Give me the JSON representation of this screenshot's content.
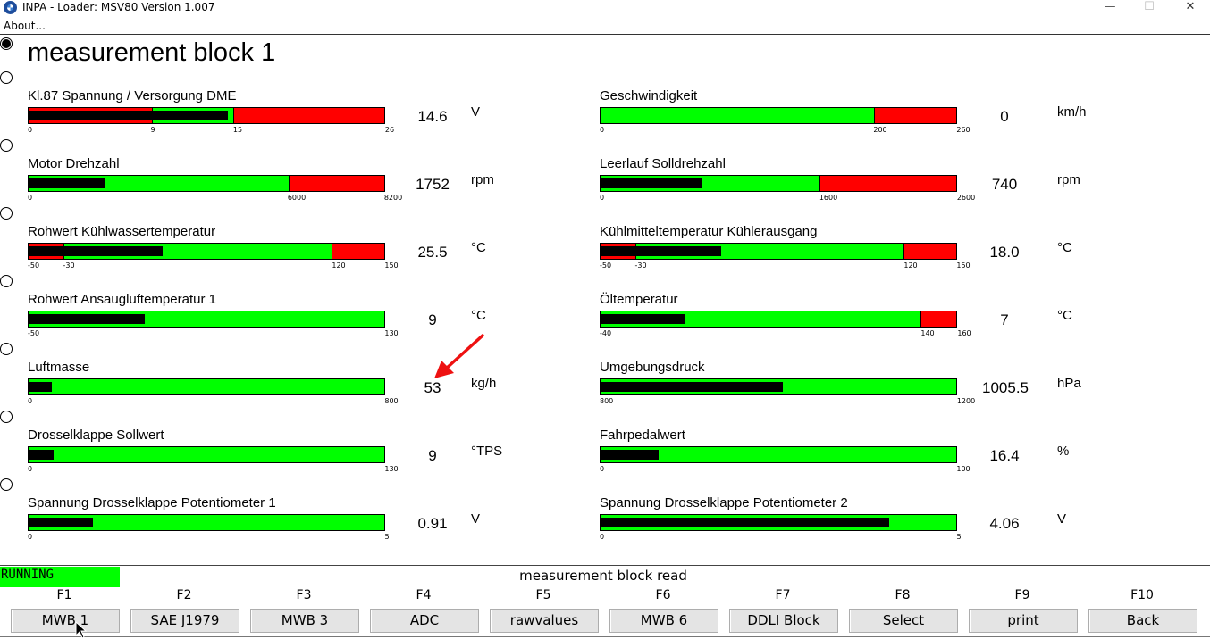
{
  "window": {
    "title": "INPA - Loader:  MSV80 Version 1.007",
    "app_icon": "bmw-logo-icon",
    "controls": {
      "minimize": "—",
      "maximize": "☐",
      "close": "✕"
    }
  },
  "menu": {
    "about": "About..."
  },
  "page_title": "measurement block 1",
  "radio_count": 8,
  "left_column": [
    {
      "label": "Kl.87 Spannung / Versorgung DME",
      "value": "14.6",
      "unit": "V",
      "ticks": [
        "0",
        "9",
        "15",
        "26"
      ],
      "fill_fraction": 0.5615,
      "zones": [
        "red 0-9",
        "green 9-15",
        "red 15-26"
      ]
    },
    {
      "label": "Motor Drehzahl",
      "value": "1752",
      "unit": "rpm",
      "ticks": [
        "0",
        "6000",
        "8200"
      ],
      "fill_fraction": 0.2137,
      "zones": [
        "green 0-6000",
        "red 6000-8200"
      ]
    },
    {
      "label": "Rohwert Kühlwassertemperatur",
      "value": "25.5",
      "unit": "°C",
      "ticks": [
        "-50",
        "-30",
        "120",
        "150"
      ],
      "fill_fraction": 0.3775,
      "zones": [
        "red -50--30",
        "green -30-120",
        "red 120-150"
      ]
    },
    {
      "label": "Rohwert Ansaugluftemperatur 1",
      "value": "9",
      "unit": "°C",
      "ticks": [
        "-50",
        "130"
      ],
      "fill_fraction": 0.3278,
      "zones": [
        "green -50-130"
      ]
    },
    {
      "label": "Luftmasse",
      "value": "53",
      "unit": "kg/h",
      "ticks": [
        "0",
        "800"
      ],
      "fill_fraction": 0.0663,
      "zones": [
        "green 0-800"
      ]
    },
    {
      "label": "Drosselklappe Sollwert",
      "value": "9",
      "unit": "°TPS",
      "ticks": [
        "0",
        "130"
      ],
      "fill_fraction": 0.0692,
      "zones": [
        "green 0-130"
      ]
    },
    {
      "label": "Spannung Drosselklappe Potentiometer 1",
      "value": "0.91",
      "unit": "V",
      "ticks": [
        "0",
        "5"
      ],
      "fill_fraction": 0.182,
      "zones": [
        "green 0-5"
      ]
    }
  ],
  "right_column": [
    {
      "label": "Geschwindigkeit",
      "value": "0",
      "unit": "km/h",
      "ticks": [
        "0",
        "200",
        "260"
      ],
      "fill_fraction": 0,
      "zones": [
        "green 0-200",
        "red 200-260"
      ]
    },
    {
      "label": "Leerlauf Solldrehzahl",
      "value": "740",
      "unit": "rpm",
      "ticks": [
        "0",
        "1600",
        "2600"
      ],
      "fill_fraction": 0.2846,
      "zones": [
        "green 0-1600",
        "red 1600-2600"
      ]
    },
    {
      "label": "Kühlmitteltemperatur Kühlerausgang",
      "value": "18.0",
      "unit": "°C",
      "ticks": [
        "-50",
        "-30",
        "120",
        "150"
      ],
      "fill_fraction": 0.34,
      "zones": [
        "red -50--30",
        "green -30-120",
        "red 120-150"
      ]
    },
    {
      "label": "Öltemperatur",
      "value": "7",
      "unit": "°C",
      "ticks": [
        "-40",
        "140",
        "160"
      ],
      "fill_fraction": 0.235,
      "zones": [
        "green -40-140",
        "red 140-160"
      ]
    },
    {
      "label": "Umgebungsdruck",
      "value": "1005.5",
      "unit": "hPa",
      "ticks": [
        "800",
        "1200"
      ],
      "fill_fraction": 0.5138,
      "zones": [
        "green 800-1200"
      ]
    },
    {
      "label": "Fahrpedalwert",
      "value": "16.4",
      "unit": "%",
      "ticks": [
        "0",
        "100"
      ],
      "fill_fraction": 0.164,
      "zones": [
        "green 0-100"
      ]
    },
    {
      "label": "Spannung Drosselklappe Potentiometer 2",
      "value": "4.06",
      "unit": "V",
      "ticks": [
        "0",
        "5"
      ],
      "fill_fraction": 0.812,
      "zones": [
        "green 0-5"
      ]
    }
  ],
  "status": {
    "state": "RUNNING",
    "message": "measurement block read",
    "state_color": "#00ff00"
  },
  "function_keys": [
    {
      "key": "F1",
      "label": "MWB 1"
    },
    {
      "key": "F2",
      "label": "SAE J1979"
    },
    {
      "key": "F3",
      "label": "MWB 3"
    },
    {
      "key": "F4",
      "label": "ADC"
    },
    {
      "key": "F5",
      "label": "rawvalues"
    },
    {
      "key": "F6",
      "label": "MWB 6"
    },
    {
      "key": "F7",
      "label": "DDLI Block"
    },
    {
      "key": "F8",
      "label": "Select"
    },
    {
      "key": "F9",
      "label": "print"
    },
    {
      "key": "F10",
      "label": "Back"
    }
  ],
  "colors": {
    "ok": "#00ff00",
    "warn": "#ff0000",
    "fill": "#000000",
    "annotation_arrow": "#ee1111"
  }
}
